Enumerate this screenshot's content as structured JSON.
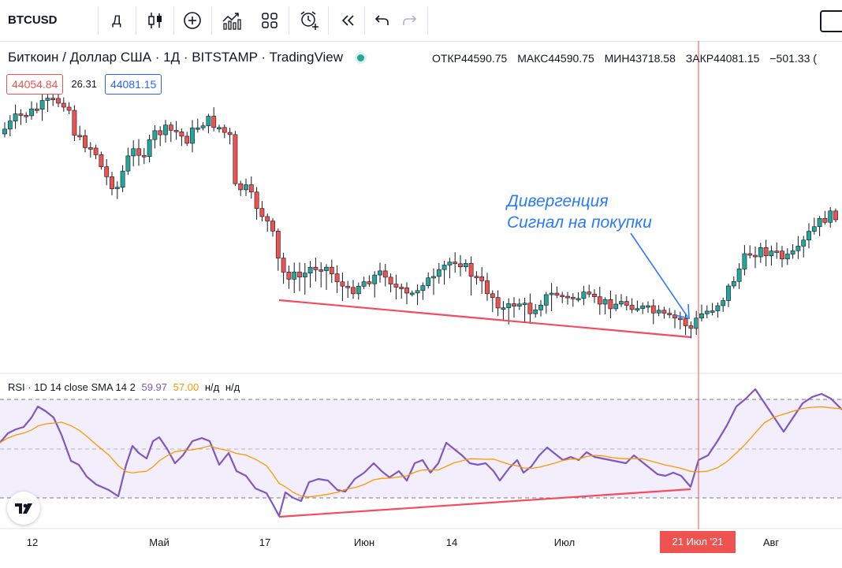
{
  "toolbar": {
    "symbol": "BTCUSD",
    "interval": "Д",
    "buttons": [
      "candle-type",
      "add-indicator",
      "indicators",
      "templates",
      "alert",
      "replay",
      "undo",
      "redo"
    ]
  },
  "legend": {
    "title": "Биткоин / Доллар США · 1Д · BITSTAMP · TradingView",
    "status_color": "#26a69a"
  },
  "ohlc": {
    "open_label": "ОТКР",
    "open": "44590.75",
    "high_label": "МАКС",
    "high": "44590.75",
    "low_label": "МИН",
    "low": "43718.58",
    "close_label": "ЗАКР",
    "close": "44081.15",
    "change": "−501.33 ("
  },
  "prices": {
    "bid": "44054.84",
    "spread": "26.31",
    "ask": "44081.15"
  },
  "rsi": {
    "label": "RSI · 1D 14 close SMA 14 2",
    "value": "59.97",
    "sma_value": "57.00",
    "na1": "н/д",
    "na2": "н/д"
  },
  "annotation": {
    "line1": "Дивергенция",
    "line2": "Сигнал на покупки"
  },
  "time_axis": {
    "ticks": [
      "12",
      "Май",
      "17",
      "Июн",
      "14",
      "Июл",
      "Авг"
    ],
    "cursor_date": "21 Июл '21"
  },
  "colors": {
    "up": "#26a69a",
    "down": "#ef5350",
    "rsi_line": "#7e57c2",
    "rsi_sma": "#ff9800",
    "divergence": "#f44b5e",
    "annotation": "#2979ff"
  }
}
